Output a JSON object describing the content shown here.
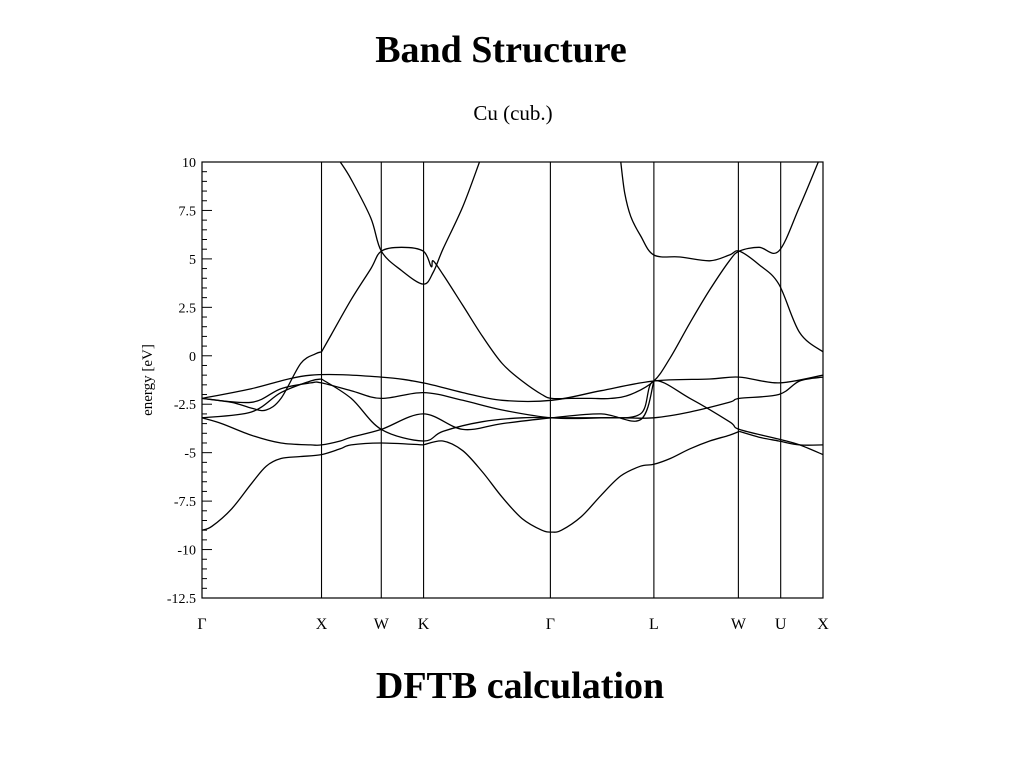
{
  "slide": {
    "title": "Band Structure",
    "footer": "DFTB calculation"
  },
  "chart_data": {
    "type": "line",
    "title": "Cu (cub.)",
    "xlabel": "",
    "ylabel": "energy [eV]",
    "ylim": [
      -12.5,
      10
    ],
    "yticks": [
      10,
      7.5,
      5,
      2.5,
      0,
      -2.5,
      -5,
      -7.5,
      -10,
      -12.5
    ],
    "ytick_labels": [
      "10",
      "7.5",
      "5",
      "2.5",
      "0",
      "-2.5",
      "-5",
      "-7.5",
      "-10",
      "-12.5"
    ],
    "grid": false,
    "line_color": "#000000",
    "kpath": [
      {
        "label": "Γ",
        "k": 0.0
      },
      {
        "label": "X",
        "k": 1.0
      },
      {
        "label": "W",
        "k": 1.5
      },
      {
        "label": "K",
        "k": 1.854
      },
      {
        "label": "Γ",
        "k": 2.915
      },
      {
        "label": "L",
        "k": 3.781
      },
      {
        "label": "W",
        "k": 4.488
      },
      {
        "label": "U",
        "k": 4.842
      },
      {
        "label": "X",
        "k": 5.196
      }
    ],
    "series": [
      {
        "points": [
          [
            0.0,
            -9.0
          ],
          [
            0.083,
            -8.8
          ],
          [
            0.248,
            -7.9
          ],
          [
            0.413,
            -6.6
          ],
          [
            0.537,
            -5.7
          ],
          [
            0.661,
            -5.3
          ],
          [
            0.826,
            -5.2
          ],
          [
            1.0,
            -5.1
          ],
          [
            1.157,
            -4.8
          ],
          [
            1.248,
            -4.6
          ],
          [
            1.5,
            -4.5
          ],
          [
            1.851,
            -4.6
          ]
        ]
      },
      {
        "points": [
          [
            1.851,
            -4.6
          ],
          [
            2.016,
            -4.4
          ],
          [
            2.182,
            -4.9
          ],
          [
            2.347,
            -6.0
          ],
          [
            2.512,
            -7.3
          ],
          [
            2.678,
            -8.4
          ],
          [
            2.843,
            -9.0
          ],
          [
            2.926,
            -9.1
          ],
          [
            3.008,
            -9.0
          ],
          [
            3.174,
            -8.3
          ],
          [
            3.339,
            -7.2
          ],
          [
            3.504,
            -6.2
          ],
          [
            3.669,
            -5.7
          ],
          [
            3.781,
            -5.6
          ],
          [
            3.918,
            -5.3
          ],
          [
            4.083,
            -4.8
          ],
          [
            4.248,
            -4.4
          ],
          [
            4.413,
            -4.1
          ],
          [
            4.496,
            -3.9
          ]
        ]
      },
      {
        "points": [
          [
            4.496,
            -3.9
          ],
          [
            4.661,
            -4.2
          ],
          [
            4.826,
            -4.4
          ],
          [
            5.0,
            -4.6
          ],
          [
            5.196,
            -4.6
          ]
        ]
      },
      {
        "points": [
          [
            0.0,
            -3.2
          ],
          [
            0.165,
            -3.5
          ],
          [
            0.413,
            -4.1
          ],
          [
            0.661,
            -4.5
          ],
          [
            0.909,
            -4.6
          ],
          [
            1.0,
            -4.6
          ],
          [
            1.157,
            -4.4
          ],
          [
            1.248,
            -4.2
          ],
          [
            1.5,
            -3.8
          ],
          [
            1.851,
            -3.0
          ],
          [
            2.182,
            -3.8
          ],
          [
            2.512,
            -3.5
          ],
          [
            2.926,
            -3.2
          ],
          [
            3.339,
            -3.0
          ],
          [
            3.669,
            -3.3
          ],
          [
            3.781,
            -1.3
          ]
        ]
      },
      {
        "points": [
          [
            0.0,
            -3.2
          ],
          [
            0.413,
            -2.9
          ],
          [
            0.661,
            -1.9
          ],
          [
            0.909,
            -1.3
          ],
          [
            1.0,
            -1.2
          ]
        ]
      },
      {
        "points": [
          [
            1.0,
            -1.2
          ],
          [
            1.248,
            -2.2
          ],
          [
            1.5,
            -3.8
          ],
          [
            1.851,
            -4.4
          ],
          [
            2.016,
            -3.9
          ],
          [
            2.347,
            -3.4
          ],
          [
            2.678,
            -3.2
          ],
          [
            2.926,
            -3.2
          ],
          [
            3.174,
            -3.2
          ],
          [
            3.504,
            -3.2
          ],
          [
            3.781,
            -3.2
          ],
          [
            4.083,
            -2.9
          ],
          [
            4.413,
            -2.4
          ],
          [
            4.496,
            -2.2
          ],
          [
            4.826,
            -2.0
          ],
          [
            5.0,
            -1.3
          ],
          [
            5.196,
            -1.1
          ]
        ]
      },
      {
        "points": [
          [
            0.0,
            -2.2
          ],
          [
            0.413,
            -1.7
          ],
          [
            0.909,
            -1.0
          ],
          [
            1.5,
            -1.1
          ],
          [
            1.851,
            -1.4
          ],
          [
            2.182,
            -1.9
          ],
          [
            2.512,
            -2.3
          ],
          [
            2.926,
            -2.3
          ],
          [
            3.339,
            -1.8
          ],
          [
            3.781,
            -1.3
          ],
          [
            4.248,
            -1.2
          ],
          [
            4.496,
            -1.1
          ],
          [
            4.826,
            -1.4
          ],
          [
            5.196,
            -1.0
          ]
        ]
      },
      {
        "points": [
          [
            0.0,
            -2.2
          ],
          [
            0.413,
            -2.4
          ],
          [
            0.661,
            -1.7
          ],
          [
            0.909,
            -1.4
          ],
          [
            1.0,
            -1.4
          ],
          [
            1.248,
            -1.8
          ],
          [
            1.5,
            -2.2
          ],
          [
            1.851,
            -1.9
          ],
          [
            2.182,
            -2.3
          ],
          [
            2.512,
            -2.8
          ],
          [
            2.926,
            -3.2
          ],
          [
            3.339,
            -3.2
          ],
          [
            3.669,
            -3.0
          ],
          [
            3.781,
            -1.3
          ],
          [
            4.083,
            -2.2
          ],
          [
            4.413,
            -3.4
          ],
          [
            4.496,
            -3.8
          ],
          [
            4.826,
            -4.3
          ],
          [
            5.0,
            -4.6
          ],
          [
            5.196,
            -5.1
          ]
        ]
      },
      {
        "points": [
          [
            0.0,
            -2.2
          ],
          [
            0.248,
            -2.4
          ],
          [
            0.413,
            -2.7
          ],
          [
            0.537,
            -2.8
          ],
          [
            0.661,
            -2.2
          ],
          [
            0.826,
            -0.4
          ],
          [
            0.95,
            0.1
          ],
          [
            1.0,
            0.2
          ]
        ]
      },
      {
        "points": [
          [
            1.0,
            0.2
          ],
          [
            1.083,
            1.1
          ],
          [
            1.248,
            2.9
          ],
          [
            1.413,
            4.5
          ],
          [
            1.5,
            5.4
          ],
          [
            1.669,
            5.6
          ],
          [
            1.851,
            5.4
          ],
          [
            1.918,
            4.6
          ],
          [
            1.934,
            4.9
          ],
          [
            2.016,
            4.2
          ],
          [
            2.182,
            2.6
          ],
          [
            2.347,
            1.0
          ],
          [
            2.512,
            -0.4
          ],
          [
            2.678,
            -1.3
          ],
          [
            2.843,
            -2.0
          ],
          [
            2.926,
            -2.2
          ],
          [
            3.091,
            -2.2
          ],
          [
            3.256,
            -2.2
          ],
          [
            3.421,
            -2.2
          ],
          [
            3.586,
            -2.0
          ],
          [
            3.781,
            -1.3
          ],
          [
            3.918,
            -0.1
          ],
          [
            4.083,
            1.7
          ],
          [
            4.248,
            3.4
          ],
          [
            4.413,
            4.9
          ],
          [
            4.496,
            5.4
          ],
          [
            4.661,
            5.6
          ],
          [
            4.826,
            5.4
          ],
          [
            5.0,
            7.7
          ],
          [
            5.157,
            10.0
          ]
        ]
      },
      {
        "points": [
          [
            1.157,
            10.0
          ],
          [
            1.248,
            9.1
          ],
          [
            1.413,
            7.1
          ],
          [
            1.5,
            5.4
          ],
          [
            1.669,
            4.4
          ],
          [
            1.851,
            3.7
          ],
          [
            1.934,
            4.3
          ],
          [
            2.016,
            5.5
          ],
          [
            2.182,
            7.7
          ],
          [
            2.322,
            10.0
          ]
        ]
      },
      {
        "points": [
          [
            3.504,
            10.0
          ],
          [
            3.537,
            8.4
          ],
          [
            3.587,
            7.2
          ],
          [
            3.669,
            6.2
          ],
          [
            3.781,
            5.2
          ],
          [
            4.0,
            5.1
          ],
          [
            4.248,
            4.9
          ],
          [
            4.413,
            5.2
          ],
          [
            4.496,
            5.4
          ],
          [
            4.661,
            4.7
          ],
          [
            4.826,
            3.7
          ],
          [
            5.0,
            1.2
          ],
          [
            5.196,
            0.2
          ]
        ]
      }
    ]
  }
}
